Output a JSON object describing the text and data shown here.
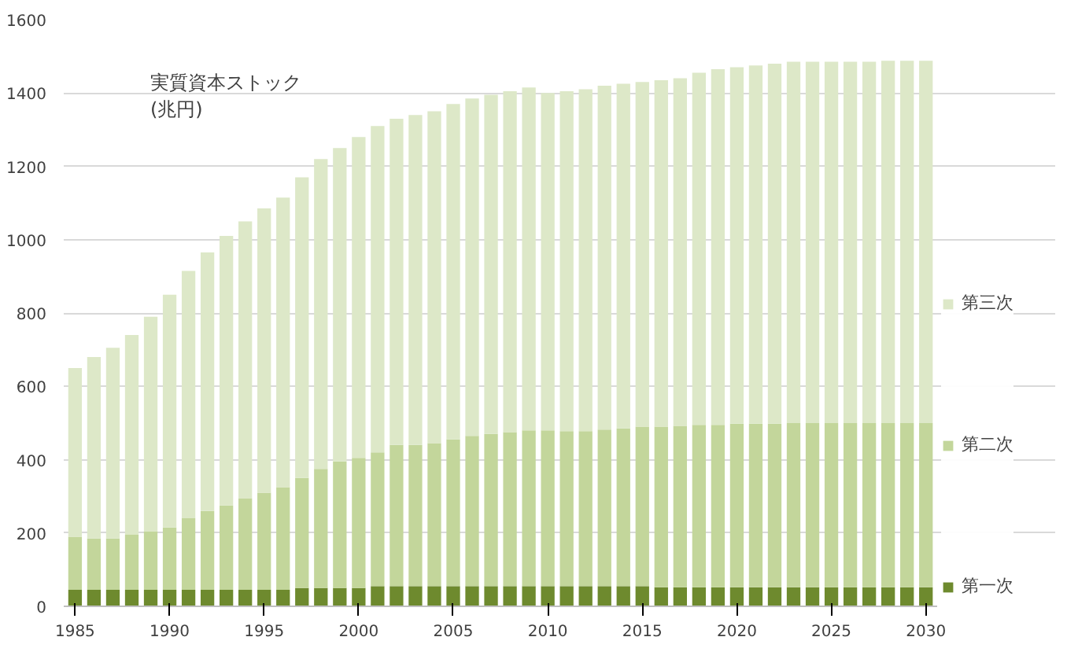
{
  "chart_data": {
    "type": "bar",
    "stacked": true,
    "title": "実質資本ストック\n(兆円)",
    "x": [
      1985,
      1986,
      1987,
      1988,
      1989,
      1990,
      1991,
      1992,
      1993,
      1994,
      1995,
      1996,
      1997,
      1998,
      1999,
      2000,
      2001,
      2002,
      2003,
      2004,
      2005,
      2006,
      2007,
      2008,
      2009,
      2010,
      2011,
      2012,
      2013,
      2014,
      2015,
      2016,
      2017,
      2018,
      2019,
      2020,
      2021,
      2022,
      2023,
      2024,
      2025,
      2026,
      2027,
      2028,
      2029,
      2030
    ],
    "series": [
      {
        "name": "第一次",
        "color": "#6e8a2e",
        "values": [
          45,
          45,
          45,
          45,
          45,
          45,
          45,
          45,
          45,
          45,
          45,
          45,
          50,
          50,
          50,
          50,
          55,
          55,
          55,
          55,
          55,
          55,
          55,
          55,
          55,
          55,
          55,
          55,
          55,
          55,
          55,
          52,
          52,
          52,
          52,
          52,
          52,
          52,
          52,
          52,
          52,
          52,
          52,
          52,
          52,
          52
        ]
      },
      {
        "name": "第二次",
        "color": "#c3d69b",
        "values": [
          145,
          140,
          140,
          150,
          160,
          170,
          195,
          215,
          230,
          250,
          265,
          280,
          300,
          325,
          345,
          355,
          365,
          385,
          385,
          390,
          400,
          410,
          415,
          420,
          425,
          425,
          423,
          423,
          427,
          430,
          435,
          438,
          440,
          443,
          443,
          446,
          446,
          446,
          448,
          448,
          448,
          448,
          448,
          448,
          448,
          448
        ]
      },
      {
        "name": "第三次",
        "color": "#dde8c8",
        "values": [
          460,
          495,
          520,
          545,
          585,
          635,
          675,
          705,
          735,
          755,
          775,
          790,
          820,
          845,
          855,
          875,
          890,
          890,
          900,
          905,
          915,
          920,
          925,
          930,
          935,
          920,
          927,
          932,
          938,
          940,
          940,
          945,
          948,
          960,
          970,
          972,
          977,
          982,
          985,
          985,
          985,
          985,
          985,
          988,
          988,
          988
        ]
      }
    ],
    "xlim": [
      1984.4,
      2030.6
    ],
    "xticks": [
      1985,
      1990,
      1995,
      2000,
      2005,
      2010,
      2015,
      2020,
      2025,
      2030
    ],
    "ylim": [
      0,
      1600
    ],
    "yticks": [
      0,
      200,
      400,
      600,
      800,
      1000,
      1200,
      1400,
      1600
    ],
    "grid": "y",
    "legend": "right"
  }
}
